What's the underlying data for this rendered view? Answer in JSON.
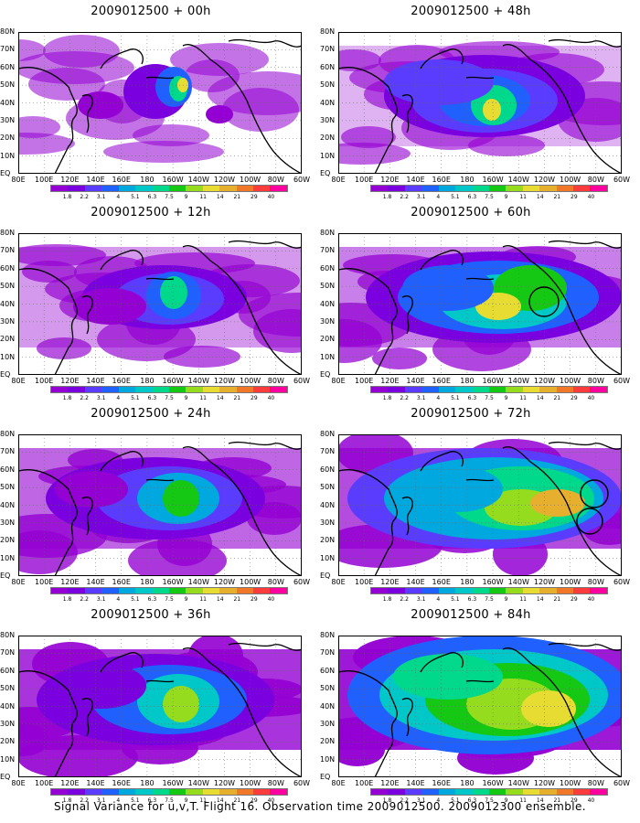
{
  "panels": [
    {
      "title": "2009012500 + 00h",
      "lead": 0
    },
    {
      "title": "2009012500 + 48h",
      "lead": 48
    },
    {
      "title": "2009012500 + 12h",
      "lead": 12
    },
    {
      "title": "2009012500 + 60h",
      "lead": 60
    },
    {
      "title": "2009012500 + 24h",
      "lead": 24
    },
    {
      "title": "2009012500 + 72h",
      "lead": 72
    },
    {
      "title": "2009012500 + 36h",
      "lead": 36
    },
    {
      "title": "2009012500 + 84h",
      "lead": 84
    }
  ],
  "x_ticks": [
    "80E",
    "100E",
    "120E",
    "140E",
    "160E",
    "180",
    "160W",
    "140W",
    "120W",
    "100W",
    "80W",
    "60W"
  ],
  "y_ticks": [
    "80N",
    "70N",
    "60N",
    "50N",
    "40N",
    "30N",
    "20N",
    "10N",
    "EQ"
  ],
  "colorbar": {
    "labels": [
      "1.8",
      "2.2",
      "3.1",
      "4",
      "5.1",
      "6.3",
      "7.5",
      "9",
      "11",
      "14",
      "21",
      "29",
      "40"
    ],
    "colors": [
      "#9400d3",
      "#7a00e0",
      "#5a3cff",
      "#2060ff",
      "#00a8e0",
      "#00c8c8",
      "#00d88c",
      "#14c814",
      "#96dc1e",
      "#e6dc32",
      "#e6af2d",
      "#f07828",
      "#fa3c3c",
      "#ff00a0"
    ]
  },
  "footer": "Signal Variance for u,v,T. Flight 16. Observation time 2009012500. 2009012300 ensemble."
}
